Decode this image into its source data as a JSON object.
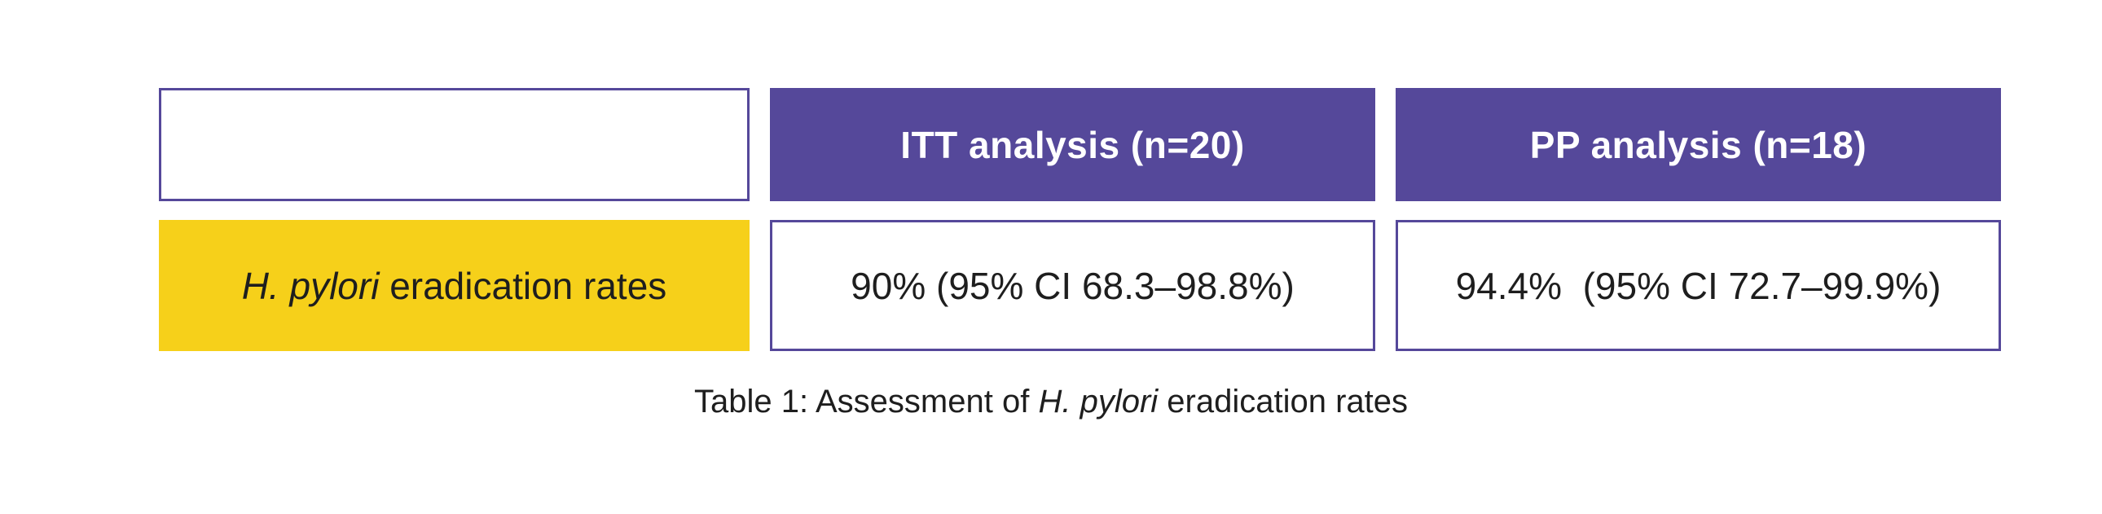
{
  "table": {
    "headers": {
      "corner": "",
      "itt": "ITT analysis (n=20)",
      "pp": "PP analysis (n=18)"
    },
    "row_label": {
      "italic": "H. pylori",
      "rest": " eradication rates"
    },
    "values": {
      "itt": "90% (95% CI 68.3–98.8%)",
      "pp": "94.4%  (95% CI 72.7–99.9%)"
    }
  },
  "caption": {
    "prefix": "Table 1: Assessment of ",
    "italic": "H. pylori",
    "suffix": " eradication rates"
  },
  "chart_data": {
    "type": "table",
    "title": "Table 1: Assessment of H. pylori eradication rates",
    "columns": [
      "",
      "ITT analysis (n=20)",
      "PP analysis (n=18)"
    ],
    "rows": [
      [
        "H. pylori eradication rates",
        "90% (95% CI 68.3–98.8%)",
        "94.4% (95% CI 72.7–99.9%)"
      ]
    ]
  },
  "colors": {
    "header_fill": "#55489A",
    "cell_border": "#55489A",
    "label_fill": "#F6D01A",
    "header_text": "#FFFFFF",
    "body_text": "#1E1E1E"
  }
}
